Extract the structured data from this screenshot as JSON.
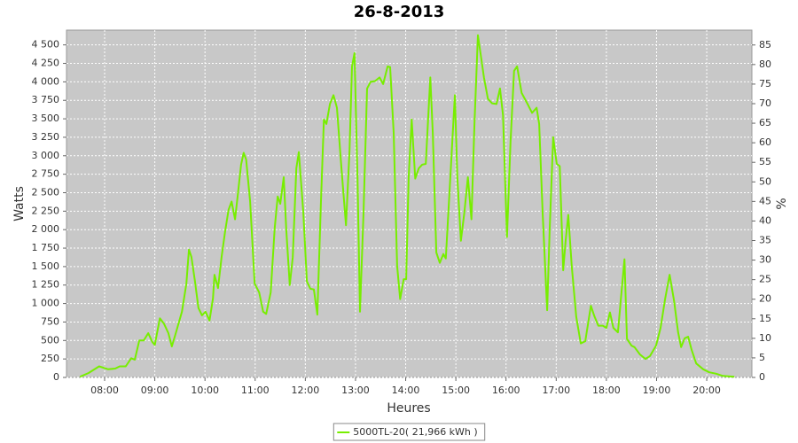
{
  "chart_data": {
    "type": "line",
    "title": "26-8-2013",
    "xlabel": "Heures",
    "ylabel": "Watts",
    "y2label": "%",
    "grid": true,
    "legend": "bottom",
    "xlim": [
      7.24,
      20.9
    ],
    "xticks": [
      {
        "value": 8,
        "label": "08:00"
      },
      {
        "value": 9,
        "label": "09:00"
      },
      {
        "value": 10,
        "label": "10:00"
      },
      {
        "value": 11,
        "label": "11:00"
      },
      {
        "value": 12,
        "label": "12:00"
      },
      {
        "value": 13,
        "label": "13:00"
      },
      {
        "value": 14,
        "label": "14:00"
      },
      {
        "value": 15,
        "label": "15:00"
      },
      {
        "value": 16,
        "label": "16:00"
      },
      {
        "value": 17,
        "label": "17:00"
      },
      {
        "value": 18,
        "label": "18:00"
      },
      {
        "value": 19,
        "label": "19:00"
      },
      {
        "value": 20,
        "label": "20:00"
      }
    ],
    "ylim": [
      0,
      4700
    ],
    "yticks": [
      0,
      250,
      500,
      750,
      {
        "value": 1000,
        "label": "1 000"
      },
      {
        "value": 1250,
        "label": "1 250"
      },
      {
        "value": 1500,
        "label": "1 500"
      },
      {
        "value": 1750,
        "label": "1 750"
      },
      {
        "value": 2000,
        "label": "2 000"
      },
      {
        "value": 2250,
        "label": "2 250"
      },
      {
        "value": 2500,
        "label": "2 500"
      },
      {
        "value": 2750,
        "label": "2 750"
      },
      {
        "value": 3000,
        "label": "3 000"
      },
      {
        "value": 3250,
        "label": "3 250"
      },
      {
        "value": 3500,
        "label": "3 500"
      },
      {
        "value": 3750,
        "label": "3 750"
      },
      {
        "value": 4000,
        "label": "4 000"
      },
      {
        "value": 4250,
        "label": "4 250"
      },
      {
        "value": 4500,
        "label": "4 500"
      }
    ],
    "y2lim": [
      0,
      88.8
    ],
    "y2ticks": [
      0,
      5,
      10,
      15,
      20,
      25,
      30,
      35,
      40,
      45,
      50,
      55,
      60,
      65,
      70,
      75,
      80,
      85
    ],
    "x": [
      7.51,
      7.68,
      7.89,
      8.07,
      8.21,
      8.3,
      8.42,
      8.53,
      8.6,
      8.69,
      8.78,
      8.87,
      8.95,
      9.0,
      9.1,
      9.18,
      9.27,
      9.34,
      9.41,
      9.54,
      9.63,
      9.68,
      9.73,
      9.8,
      9.87,
      9.94,
      10.01,
      10.09,
      10.16,
      10.19,
      10.26,
      10.33,
      10.4,
      10.47,
      10.53,
      10.6,
      10.65,
      10.72,
      10.77,
      10.82,
      10.9,
      10.99,
      11.08,
      11.16,
      11.22,
      11.31,
      11.39,
      11.45,
      11.5,
      11.57,
      11.62,
      11.69,
      11.75,
      11.82,
      11.87,
      11.96,
      12.03,
      12.1,
      12.17,
      12.24,
      12.31,
      12.37,
      12.42,
      12.49,
      12.56,
      12.63,
      12.72,
      12.81,
      12.88,
      12.93,
      12.98,
      13.04,
      13.09,
      13.16,
      13.23,
      13.3,
      13.39,
      13.48,
      13.55,
      13.64,
      13.69,
      13.76,
      13.83,
      13.89,
      13.96,
      14.01,
      14.06,
      14.12,
      14.19,
      14.26,
      14.33,
      14.4,
      14.49,
      14.54,
      14.61,
      14.68,
      14.75,
      14.8,
      14.89,
      14.98,
      15.03,
      15.1,
      15.17,
      15.24,
      15.31,
      15.37,
      15.44,
      15.49,
      15.56,
      15.64,
      15.72,
      15.81,
      15.88,
      15.94,
      16.02,
      16.09,
      16.16,
      16.22,
      16.31,
      16.43,
      16.52,
      16.61,
      16.66,
      16.73,
      16.82,
      16.87,
      16.94,
      17.01,
      17.07,
      17.14,
      17.19,
      17.24,
      17.31,
      17.4,
      17.49,
      17.58,
      17.69,
      17.76,
      17.84,
      17.93,
      18.0,
      18.07,
      18.14,
      18.23,
      18.29,
      18.36,
      18.41,
      18.5,
      18.56,
      18.67,
      18.78,
      18.87,
      18.99,
      19.08,
      19.17,
      19.26,
      19.35,
      19.43,
      19.49,
      19.56,
      19.63,
      19.7,
      19.79,
      19.93,
      20.05,
      20.19,
      20.32,
      20.55
    ],
    "series": [
      {
        "name": "5000TL-20( 21,966 kWh )",
        "color": "#77ee00",
        "values": [
          10,
          60,
          150,
          110,
          120,
          150,
          150,
          260,
          240,
          500,
          500,
          600,
          480,
          440,
          800,
          730,
          600,
          420,
          580,
          890,
          1270,
          1730,
          1630,
          1300,
          940,
          840,
          890,
          770,
          1070,
          1390,
          1210,
          1630,
          1970,
          2270,
          2380,
          2140,
          2450,
          2880,
          3040,
          2950,
          2380,
          1270,
          1150,
          890,
          860,
          1150,
          2020,
          2450,
          2350,
          2710,
          1990,
          1250,
          1630,
          2830,
          3050,
          2230,
          1300,
          1200,
          1190,
          850,
          2350,
          3490,
          3430,
          3700,
          3820,
          3650,
          2830,
          2060,
          3070,
          4210,
          4390,
          2710,
          890,
          2230,
          3910,
          4000,
          4010,
          4060,
          3970,
          4210,
          4200,
          3310,
          1510,
          1060,
          1330,
          1330,
          2710,
          3490,
          2690,
          2830,
          2880,
          2890,
          4060,
          3310,
          1690,
          1550,
          1670,
          1610,
          2710,
          3820,
          2710,
          1850,
          2230,
          2710,
          2140,
          3430,
          4630,
          4390,
          4060,
          3770,
          3710,
          3700,
          3910,
          3550,
          1900,
          3190,
          4150,
          4210,
          3850,
          3700,
          3580,
          3650,
          3430,
          2230,
          910,
          1990,
          3250,
          2890,
          2860,
          1450,
          1870,
          2200,
          1510,
          820,
          460,
          490,
          970,
          830,
          700,
          700,
          670,
          880,
          670,
          610,
          1070,
          1600,
          520,
          430,
          410,
          310,
          250,
          290,
          430,
          670,
          1060,
          1390,
          1030,
          610,
          410,
          530,
          550,
          370,
          190,
          110,
          70,
          50,
          20,
          10
        ]
      }
    ]
  }
}
